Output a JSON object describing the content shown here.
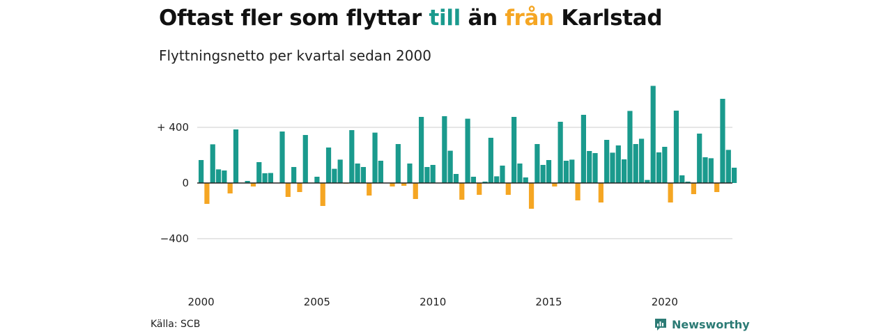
{
  "header": {
    "title_parts": [
      {
        "text": "Oftast fler som flyttar ",
        "color": "#111111"
      },
      {
        "text": "till",
        "color": "#1a9a8d"
      },
      {
        "text": " än ",
        "color": "#111111"
      },
      {
        "text": "från",
        "color": "#f5a623"
      },
      {
        "text": " Karlstad",
        "color": "#111111"
      }
    ],
    "subtitle": "Flyttningsnetto per kvartal sedan 2000"
  },
  "footer": {
    "source": "Källa: SCB",
    "brand": "Newsworthy",
    "brand_icon": "newsworthy-logo-icon"
  },
  "colors": {
    "positive": "#1a9a8d",
    "negative": "#f5a623",
    "gridline": "#dddddd",
    "zeroline": "#222222",
    "brand": "#2c7b75"
  },
  "chart_data": {
    "type": "bar",
    "title": "Oftast fler som flyttar till än från Karlstad",
    "subtitle": "Flyttningsnetto per kvartal sedan 2000",
    "x_start": "2000 Q1",
    "x_tick_labels": [
      "2000",
      "2005",
      "2010",
      "2015",
      "2020"
    ],
    "y_ticks": [
      {
        "value": 400,
        "label": "+ 400"
      },
      {
        "value": 0,
        "label": "0"
      },
      {
        "value": -400,
        "label": "−400"
      }
    ],
    "ylim": [
      -400,
      700
    ],
    "grid": true,
    "values": [
      165,
      -150,
      278,
      98,
      90,
      -75,
      385,
      0,
      15,
      -25,
      150,
      70,
      72,
      0,
      370,
      -100,
      115,
      -65,
      345,
      0,
      45,
      -165,
      255,
      102,
      168,
      -5,
      380,
      140,
      115,
      -90,
      362,
      160,
      0,
      -25,
      280,
      -20,
      140,
      -115,
      475,
      115,
      130,
      0,
      480,
      232,
      65,
      -120,
      462,
      45,
      -85,
      10,
      325,
      48,
      125,
      -85,
      475,
      140,
      40,
      -185,
      280,
      130,
      165,
      -25,
      440,
      160,
      168,
      -125,
      490,
      230,
      215,
      -140,
      310,
      218,
      270,
      170,
      518,
      280,
      318,
      22,
      698,
      220,
      260,
      -140,
      520,
      55,
      10,
      -80,
      355,
      185,
      178,
      -65,
      605,
      238,
      110
    ]
  }
}
